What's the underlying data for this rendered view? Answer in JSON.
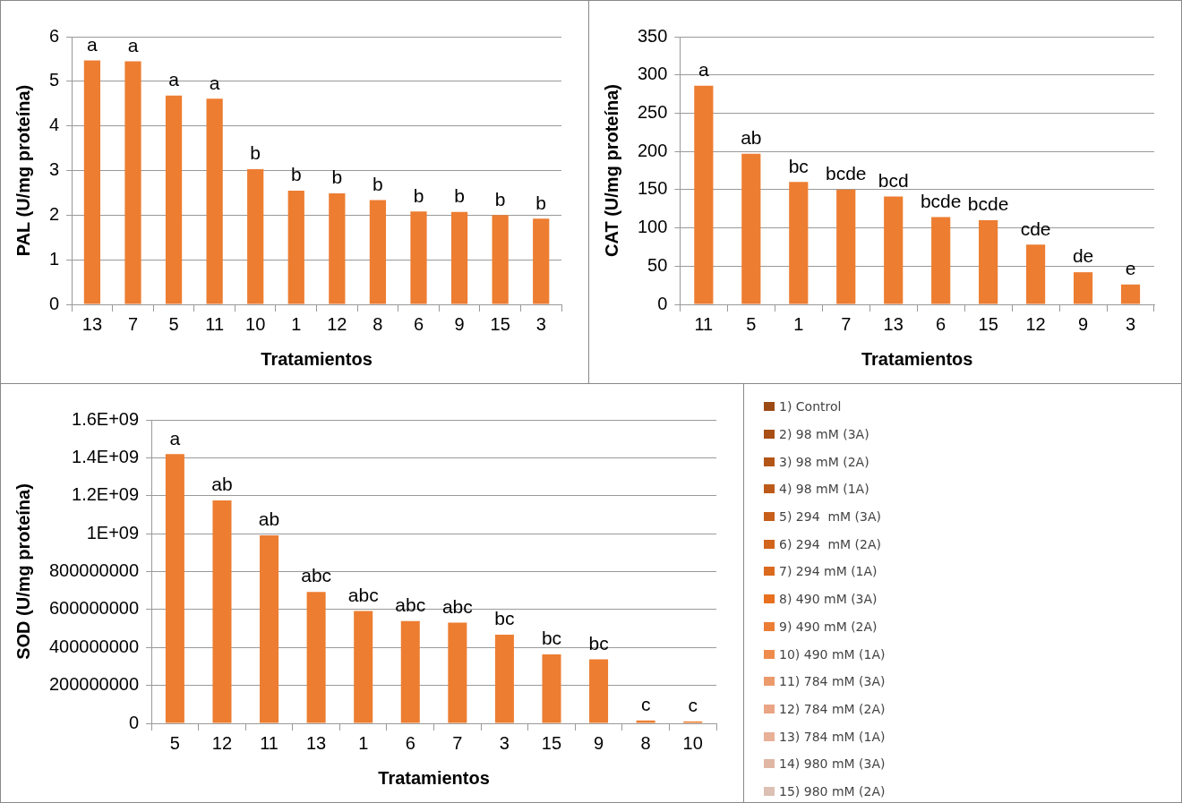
{
  "chart_data": [
    {
      "type": "bar",
      "ylabel": "PAL (U/mg proteína)",
      "xlabel": "Tratamientos",
      "categories": [
        "13",
        "7",
        "5",
        "11",
        "10",
        "1",
        "12",
        "8",
        "6",
        "9",
        "15",
        "3"
      ],
      "values": [
        5.47,
        5.45,
        4.68,
        4.61,
        3.03,
        2.55,
        2.49,
        2.34,
        2.08,
        2.07,
        2.0,
        1.92
      ],
      "value_labels": [
        "a",
        "a",
        "a",
        "a",
        "b",
        "b",
        "b",
        "b",
        "b",
        "b",
        "b",
        "b"
      ],
      "color": "#ed7d31",
      "ylim": [
        0,
        6
      ],
      "yticks": [
        0,
        1,
        2,
        3,
        4,
        5,
        6
      ],
      "grid": "y"
    },
    {
      "type": "bar",
      "ylabel": "CAT (U/mg proteína)",
      "xlabel": "Tratamientos",
      "categories": [
        "11",
        "5",
        "1",
        "7",
        "13",
        "6",
        "15",
        "12",
        "9",
        "3"
      ],
      "values": [
        286,
        197,
        160,
        150,
        141,
        114,
        110,
        78,
        42,
        26
      ],
      "value_labels": [
        "a",
        "ab",
        "bc",
        "bcde",
        "bcd",
        "bcde",
        "bcde",
        "cde",
        "de",
        "e"
      ],
      "color": "#ed7d31",
      "ylim": [
        0,
        350
      ],
      "yticks": [
        0,
        50,
        100,
        150,
        200,
        250,
        300,
        350
      ],
      "grid": "y"
    },
    {
      "type": "bar",
      "ylabel": "SOD (U/mg proteína)",
      "xlabel": "Tratamientos",
      "categories": [
        "5",
        "12",
        "11",
        "13",
        "1",
        "6",
        "7",
        "3",
        "15",
        "9",
        "8",
        "10"
      ],
      "values": [
        1419000000,
        1175000000,
        991000000,
        693000000,
        592000000,
        539000000,
        531000000,
        467000000,
        364000000,
        338000000,
        15000000,
        10000000
      ],
      "value_labels": [
        "a",
        "ab",
        "ab",
        "abc",
        "abc",
        "abc",
        "abc",
        "bc",
        "bc",
        "bc",
        "c",
        "c"
      ],
      "color": "#ed7d31",
      "ylim": [
        0,
        1600000000
      ],
      "yticks": [
        0,
        200000000,
        400000000,
        600000000,
        800000000,
        {
          "value": 1000000000,
          "label": "1E+09"
        },
        {
          "value": 1200000000,
          "label": "1.2E+09"
        },
        {
          "value": 1400000000,
          "label": "1.4E+09"
        },
        {
          "value": 1600000000,
          "label": "1.6E+09"
        }
      ],
      "grid": "y"
    },
    {
      "type": "other",
      "categories": [
        "1) Control",
        "2) 98 mM (3A)",
        "3) 98 mM (2A)",
        "4) 98 mM (1A)",
        "5) 294  mM (3A)",
        "6) 294  mM (2A)",
        "7) 294 mM (1A)",
        "8) 490 mM (3A)",
        "9) 490 mM (2A)",
        "10) 490 mM (1A)",
        "11) 784 mM (3A)",
        "12) 784 mM (2A)",
        "13) 784 mM (1A)",
        "14) 980 mM (3A)",
        "15) 980 mM (2A)"
      ],
      "colors": [
        "#9c4a14",
        "#a84f16",
        "#b35517",
        "#bd5a19",
        "#c75f1b",
        "#d2641c",
        "#dc6a1e",
        "#e8701f",
        "#ec7d35",
        "#ef8c4c",
        "#ec9a6c",
        "#eaa584",
        "#e8b097",
        "#e0b6a4",
        "#dcc0b3"
      ]
    }
  ]
}
